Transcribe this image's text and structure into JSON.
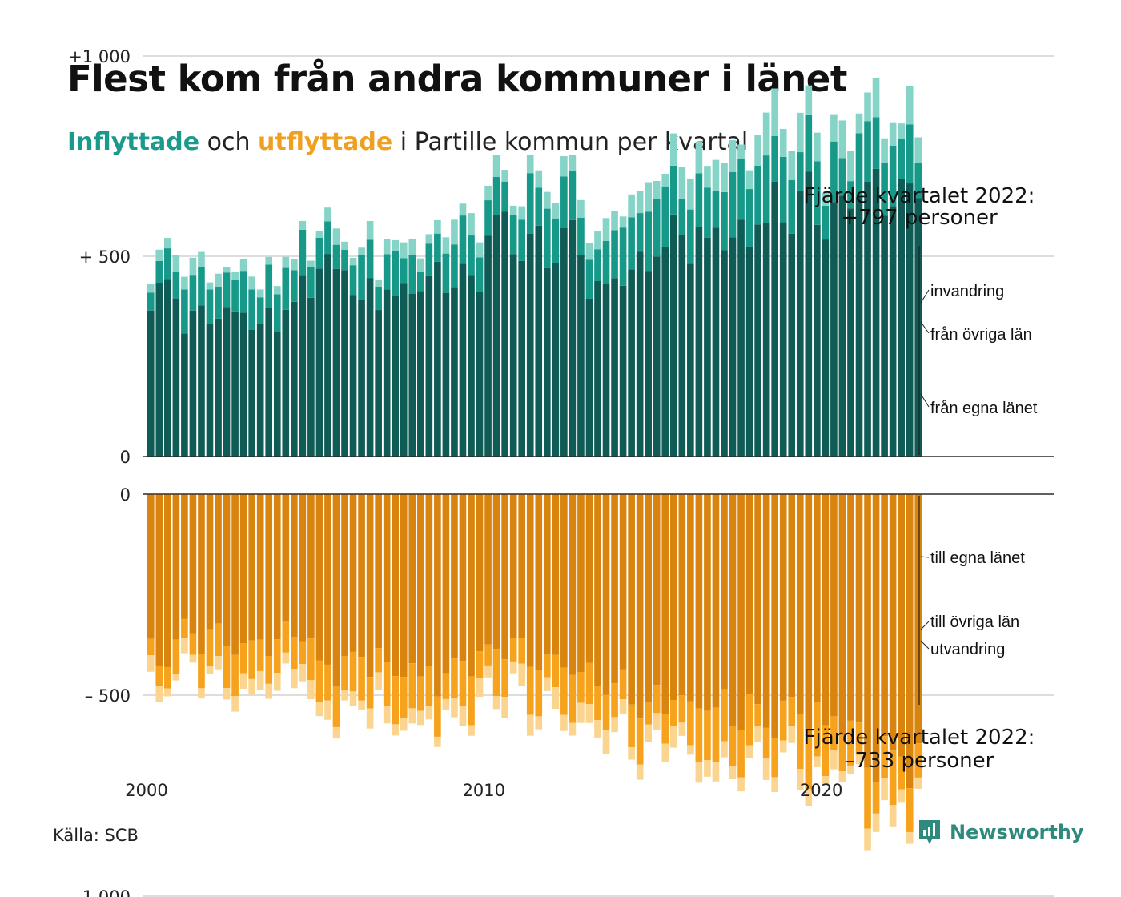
{
  "header": {
    "title": "Flest kom från andra kommuner i länet",
    "subtitle_in": "Inflyttade",
    "subtitle_mid": " och ",
    "subtitle_out": "utflyttade",
    "subtitle_rest": " i Partille kommun per kvartal"
  },
  "footer": {
    "source": "Källa: SCB",
    "brand": "Newsworthy",
    "brand_icon": "newsworthy-logo-icon"
  },
  "chart_data": {
    "type": "bar",
    "stacked": true,
    "x_start": "2000 Q1",
    "x_end": "2022 Q4",
    "x_ticks": [
      {
        "label": "2000",
        "year": 2000
      },
      {
        "label": "2010",
        "year": 2010
      },
      {
        "label": "2020",
        "year": 2020
      }
    ],
    "top_panel": {
      "ylim": [
        0,
        1050
      ],
      "y_ticks": [
        {
          "value": 0,
          "label": "0"
        },
        {
          "value": 500,
          "label": "+  500"
        },
        {
          "value": 1000,
          "label": "+1 000"
        }
      ],
      "series_labels": [
        "från egna länet",
        "från övriga län",
        "invandring"
      ],
      "colors": [
        "#0f5b55",
        "#17998a",
        "#86d4c8"
      ],
      "annotation": {
        "line1": "Fjärde kvartalet 2022:",
        "line2": "+797 personer"
      },
      "annual_levels": {
        "from_own_county": [
          410,
          340,
          365,
          330,
          395,
          470,
          400,
          415,
          450,
          440,
          560,
          520,
          520,
          430,
          470,
          530,
          545,
          545,
          620,
          620,
          620,
          660,
          670
        ],
        "from_other_counties": [
          80,
          85,
          80,
          85,
          80,
          80,
          85,
          90,
          85,
          95,
          100,
          110,
          105,
          110,
          115,
          115,
          115,
          130,
          125,
          125,
          115,
          120,
          115
        ],
        "immigration": [
          30,
          30,
          25,
          30,
          30,
          30,
          30,
          30,
          35,
          45,
          45,
          50,
          45,
          40,
          50,
          55,
          60,
          60,
          80,
          75,
          70,
          65,
          65
        ]
      },
      "last_quarter": {
        "from_own_county": 645,
        "from_other_counties": 87,
        "immigration": 65
      }
    },
    "bottom_panel": {
      "ylim": [
        -1050,
        0
      ],
      "y_ticks": [
        {
          "value": 0,
          "label": "0"
        },
        {
          "value": -500,
          "label": "–  500"
        },
        {
          "value": -1000,
          "label": "–1 000"
        }
      ],
      "series_labels": [
        "till egna länet",
        "till övriga län",
        "utvandring"
      ],
      "colors": [
        "#d8840e",
        "#f6a21c",
        "#fbd590"
      ],
      "annotation": {
        "line1": "Fjärde kvartalet 2022:",
        "line2": "–733 personer"
      },
      "annual_levels": {
        "to_own_county": [
          -400,
          -350,
          -370,
          -380,
          -350,
          -420,
          -400,
          -440,
          -450,
          -420,
          -380,
          -400,
          -440,
          -480,
          -500,
          -510,
          -520,
          -540,
          -550,
          -560,
          -580,
          -640,
          -650
        ],
        "to_other_counties": [
          -70,
          -70,
          -75,
          -75,
          -80,
          -80,
          -85,
          -85,
          -85,
          -85,
          -90,
          -90,
          -90,
          -90,
          -95,
          -95,
          -100,
          -100,
          -100,
          -100,
          -105,
          -110,
          -110
        ],
        "emigration": [
          -30,
          -30,
          -30,
          -35,
          -35,
          -35,
          -35,
          -35,
          -35,
          -35,
          -40,
          -40,
          -40,
          -40,
          -40,
          -40,
          -40,
          -40,
          -40,
          -40,
          -40,
          -40,
          -40
        ]
      },
      "last_quarter": {
        "to_own_county": -620,
        "to_other_counties": -85,
        "emigration": -28
      }
    }
  }
}
